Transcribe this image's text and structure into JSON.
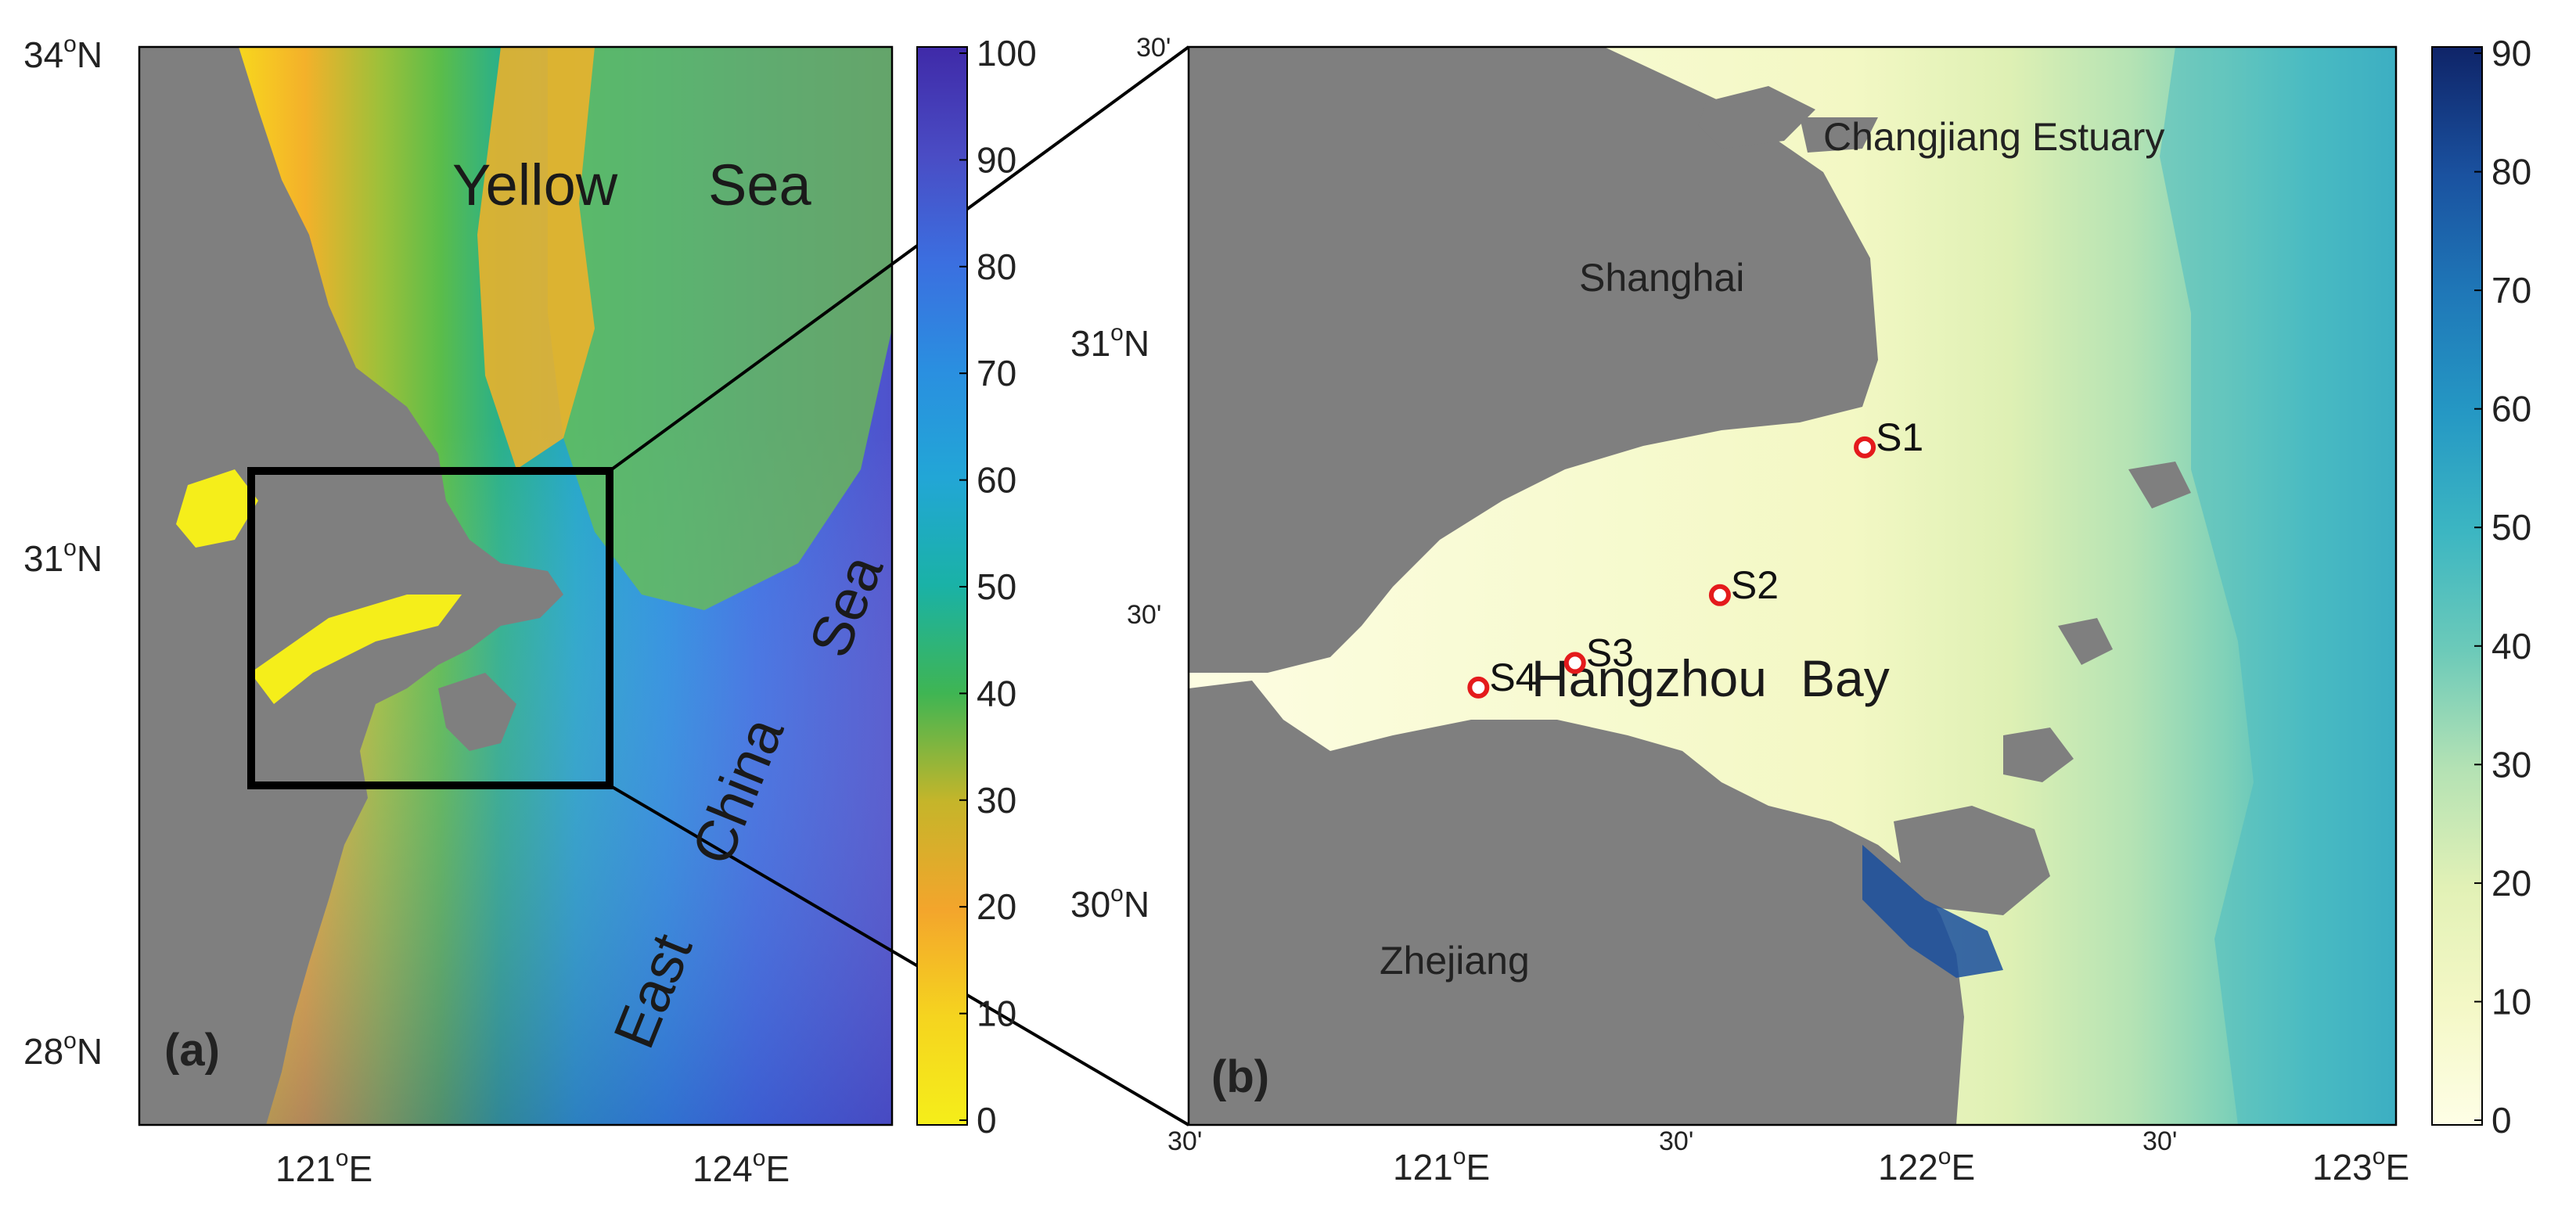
{
  "panel_a": {
    "label": "(a)",
    "lat_ticks": [
      {
        "deg": "34",
        "suffix": "N"
      },
      {
        "deg": "31",
        "suffix": "N"
      },
      {
        "deg": "28",
        "suffix": "N"
      }
    ],
    "lon_ticks": [
      {
        "deg": "121",
        "suffix": "E"
      },
      {
        "deg": "124",
        "suffix": "E"
      }
    ],
    "sea_labels": {
      "yellow_1": "Yellow",
      "yellow_2": "Sea",
      "east": "East",
      "china": "China",
      "sea": "Sea"
    },
    "colorbar": {
      "ticks": [
        "100",
        "90",
        "80",
        "70",
        "60",
        "50",
        "40",
        "30",
        "20",
        "10",
        "0"
      ],
      "stops": [
        "#f5ee1a",
        "#f5c823",
        "#f3a52c",
        "#c5b52a",
        "#8cbf39",
        "#45b84f",
        "#1fae8f",
        "#23a7c8",
        "#2a8fe0",
        "#3b6fe0",
        "#4a4cc4",
        "#3f2aa8"
      ]
    }
  },
  "panel_b": {
    "label": "(b)",
    "lat_ticks": [
      {
        "deg": "30'",
        "kind": "minute"
      },
      {
        "deg": "31",
        "suffix": "N",
        "kind": "degree"
      },
      {
        "deg": "30'",
        "kind": "minute"
      },
      {
        "deg": "30",
        "suffix": "N",
        "kind": "degree"
      }
    ],
    "lon_ticks": [
      {
        "deg": "30'",
        "kind": "minute"
      },
      {
        "deg": "121",
        "suffix": "E",
        "kind": "degree"
      },
      {
        "deg": "30'",
        "kind": "minute"
      },
      {
        "deg": "122",
        "suffix": "E",
        "kind": "degree"
      },
      {
        "deg": "30'",
        "kind": "minute"
      },
      {
        "deg": "123",
        "suffix": "E",
        "kind": "degree"
      }
    ],
    "places": {
      "estuary": "Changjiang Estuary",
      "shanghai": "Shanghai",
      "zhejiang": "Zhejiang",
      "bay_1": "Hangzhou",
      "bay_2": "Bay"
    },
    "stations": [
      {
        "name": "S1",
        "lon": 121.9,
        "lat": 30.85
      },
      {
        "name": "S2",
        "lon": 121.6,
        "lat": 30.61
      },
      {
        "name": "S3",
        "lon": 121.3,
        "lat": 30.5
      },
      {
        "name": "S4",
        "lon": 121.1,
        "lat": 30.46
      }
    ],
    "colorbar": {
      "ticks": [
        "90",
        "80",
        "70",
        "60",
        "50",
        "40",
        "30",
        "20",
        "10",
        "0"
      ],
      "stops": [
        "#fdfde0",
        "#f4f8c6",
        "#e2f1b6",
        "#c6e8b3",
        "#9fdcb6",
        "#74cdb9",
        "#4dbcbf",
        "#2ea8c4",
        "#228dbf",
        "#1d6fb2",
        "#1a4f9d",
        "#14307a"
      ]
    }
  },
  "colors": {
    "land": "#7f7f7f",
    "marker": "#e41a1c",
    "frame": "#000000"
  }
}
